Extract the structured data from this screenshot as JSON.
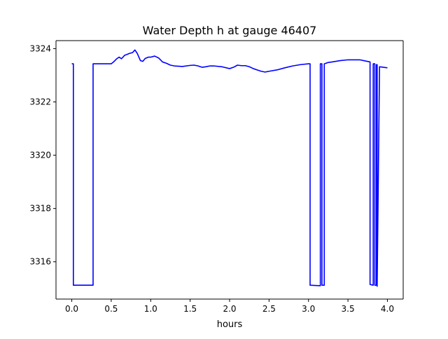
{
  "chart_data": {
    "type": "line",
    "title": "Water Depth h at gauge 46407",
    "xlabel": "hours",
    "ylabel": "",
    "xlim": [
      -0.2,
      4.2
    ],
    "ylim": [
      3314.6,
      3324.3
    ],
    "x_ticks": [
      0.0,
      0.5,
      1.0,
      1.5,
      2.0,
      2.5,
      3.0,
      3.5,
      4.0
    ],
    "x_tick_labels": [
      "0.0",
      "0.5",
      "1.0",
      "1.5",
      "2.0",
      "2.5",
      "3.0",
      "3.5",
      "4.0"
    ],
    "y_ticks": [
      3316,
      3318,
      3320,
      3322,
      3324
    ],
    "y_tick_labels": [
      "3316",
      "3318",
      "3320",
      "3322",
      "3324"
    ],
    "grid": false,
    "legend": "none",
    "series": [
      {
        "color": "#0000ff",
        "x": [
          0.0,
          0.02,
          0.02,
          0.27,
          0.27,
          0.5,
          0.53,
          0.57,
          0.6,
          0.63,
          0.67,
          0.7,
          0.73,
          0.77,
          0.8,
          0.83,
          0.87,
          0.9,
          0.93,
          0.97,
          1.0,
          1.05,
          1.1,
          1.15,
          1.2,
          1.25,
          1.3,
          1.4,
          1.5,
          1.55,
          1.6,
          1.65,
          1.7,
          1.75,
          1.8,
          1.9,
          2.0,
          2.05,
          2.1,
          2.15,
          2.2,
          2.25,
          2.3,
          2.35,
          2.4,
          2.45,
          2.5,
          2.6,
          2.7,
          2.8,
          2.9,
          3.0,
          3.02,
          3.02,
          3.15,
          3.15,
          3.17,
          3.17,
          3.2,
          3.2,
          3.22,
          3.25,
          3.3,
          3.4,
          3.5,
          3.6,
          3.65,
          3.7,
          3.78,
          3.78,
          3.82,
          3.82,
          3.84,
          3.84,
          3.86,
          3.86,
          3.87,
          3.87,
          3.9,
          4.0
        ],
        "y": [
          3323.43,
          3323.43,
          3315.12,
          3315.12,
          3323.43,
          3323.43,
          3323.5,
          3323.62,
          3323.68,
          3323.62,
          3323.75,
          3323.78,
          3323.82,
          3323.85,
          3323.95,
          3323.82,
          3323.55,
          3323.52,
          3323.63,
          3323.68,
          3323.68,
          3323.72,
          3323.65,
          3323.5,
          3323.45,
          3323.38,
          3323.35,
          3323.33,
          3323.37,
          3323.38,
          3323.35,
          3323.3,
          3323.32,
          3323.35,
          3323.35,
          3323.32,
          3323.25,
          3323.3,
          3323.38,
          3323.36,
          3323.36,
          3323.32,
          3323.25,
          3323.2,
          3323.15,
          3323.12,
          3323.15,
          3323.2,
          3323.28,
          3323.35,
          3323.4,
          3323.43,
          3323.43,
          3315.12,
          3315.1,
          3323.43,
          3323.43,
          3315.12,
          3315.12,
          3323.43,
          3323.45,
          3323.48,
          3323.5,
          3323.55,
          3323.58,
          3323.58,
          3323.58,
          3323.55,
          3323.5,
          3315.15,
          3315.12,
          3323.43,
          3323.43,
          3315.12,
          3315.12,
          3323.4,
          3323.4,
          3315.08,
          3323.32,
          3323.28
        ]
      }
    ]
  }
}
